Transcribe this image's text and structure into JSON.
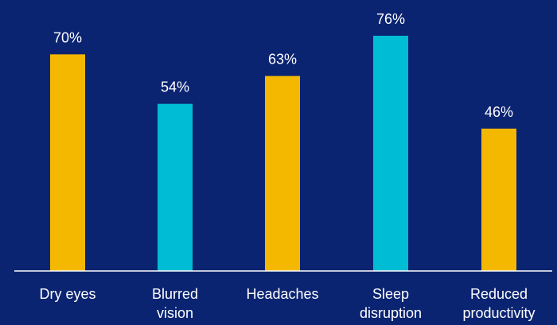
{
  "background": "#0b2472",
  "colors": {
    "yellow": "#f5b800",
    "cyan": "#00bcd4",
    "axis": "#ffffff",
    "text": "#ffffff"
  },
  "chart_data": {
    "type": "bar",
    "categories": [
      [
        "Dry eyes"
      ],
      [
        "Blurred",
        "vision"
      ],
      [
        "Headaches"
      ],
      [
        "Sleep",
        "disruption"
      ],
      [
        "Reduced",
        "productivity"
      ]
    ],
    "values": [
      70,
      54,
      63,
      76,
      46
    ],
    "data_labels": [
      "70%",
      "54%",
      "63%",
      "76%",
      "46%"
    ],
    "bar_colors": [
      "yellow",
      "cyan",
      "yellow",
      "cyan",
      "yellow"
    ],
    "unit": "%",
    "ylim": [
      0,
      76
    ],
    "title": "",
    "xlabel": "",
    "ylabel": "",
    "grid": false,
    "legend": "none"
  }
}
